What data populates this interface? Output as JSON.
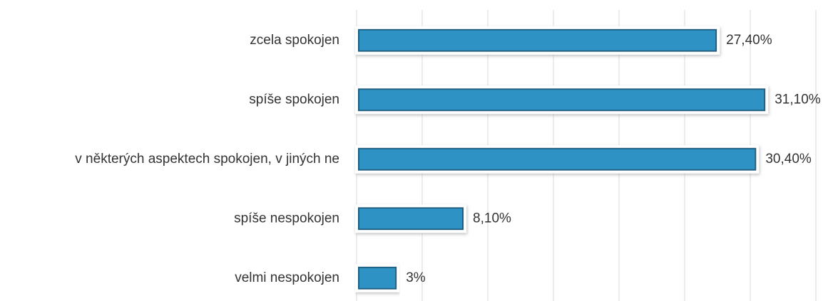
{
  "chart_data": {
    "type": "barh",
    "categories": [
      "zcela spokojen",
      "spíše spokojen",
      "v některých aspektech spokojen, v jiných ne",
      "spíše nespokojen",
      "velmi nespokojen"
    ],
    "values": [
      27.4,
      31.1,
      30.4,
      8.1,
      3
    ],
    "value_labels": [
      "27,40%",
      "31,10%",
      "30,40%",
      "8,10%",
      "3%"
    ],
    "color": "#2e93c4",
    "xlim": [
      0,
      35
    ],
    "xticks": [
      0,
      5,
      10,
      15,
      20,
      25,
      30,
      35
    ],
    "grid": true
  }
}
